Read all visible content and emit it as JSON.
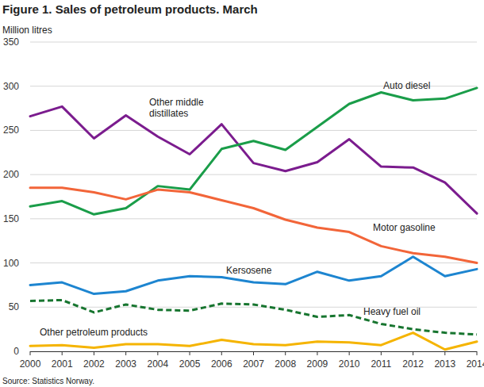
{
  "chart_data": {
    "type": "line",
    "title": "Figure 1. Sales of petroleum products. March",
    "y_label": "Million litres",
    "source": "Source: Statistics Norway.",
    "x": [
      2000,
      2001,
      2002,
      2003,
      2004,
      2005,
      2006,
      2007,
      2008,
      2009,
      2010,
      2011,
      2012,
      2013,
      2014
    ],
    "xlim": [
      2000,
      2014
    ],
    "xticks": [
      2000,
      2001,
      2002,
      2003,
      2004,
      2005,
      2006,
      2007,
      2008,
      2009,
      2010,
      2011,
      2012,
      2013,
      2014
    ],
    "ylim": [
      0,
      350
    ],
    "yticks": [
      0,
      50,
      100,
      150,
      200,
      250,
      300,
      350
    ],
    "grid": true,
    "series": [
      {
        "name": "Other middle distillates",
        "color": "#7b1c8e",
        "line_style": "solid",
        "values": [
          266,
          277,
          241,
          267,
          243,
          223,
          257,
          213,
          204,
          214,
          240,
          209,
          208,
          191,
          156
        ]
      },
      {
        "name": "Auto diesel",
        "color": "#1a9d49",
        "line_style": "solid",
        "values": [
          164,
          170,
          155,
          162,
          187,
          183,
          229,
          238,
          228,
          254,
          280,
          293,
          284,
          286,
          298
        ]
      },
      {
        "name": "Motor gasoline",
        "color": "#f26539",
        "line_style": "solid",
        "values": [
          185,
          185,
          180,
          172,
          183,
          180,
          171,
          162,
          149,
          140,
          135,
          119,
          111,
          107,
          100
        ]
      },
      {
        "name": "Kersosene",
        "color": "#1d85d0",
        "line_style": "solid",
        "values": [
          75,
          78,
          65,
          68,
          80,
          85,
          84,
          78,
          76,
          90,
          80,
          85,
          107,
          85,
          93
        ]
      },
      {
        "name": "Heavy fuel oil",
        "color": "#17752f",
        "line_style": "dashed",
        "values": [
          57,
          58,
          44,
          53,
          47,
          46,
          54,
          53,
          47,
          39,
          41,
          31,
          25,
          21,
          19
        ]
      },
      {
        "name": "Other petroleum products",
        "color": "#f5b400",
        "line_style": "solid",
        "values": [
          6,
          7,
          4,
          8,
          8,
          6,
          13,
          8,
          7,
          11,
          10,
          7,
          21,
          2,
          11
        ]
      }
    ]
  }
}
